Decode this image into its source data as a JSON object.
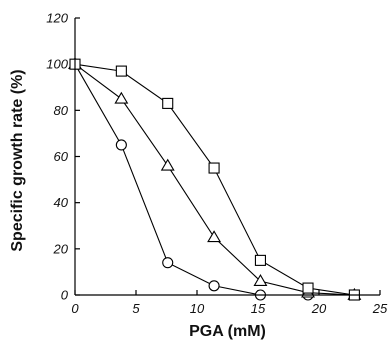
{
  "chart_data": {
    "type": "line",
    "xlabel": "PGA (mM)",
    "ylabel": "Specific growth rate (%)",
    "xlim": [
      0,
      25
    ],
    "ylim": [
      0,
      120
    ],
    "xticks": [
      0,
      5,
      10,
      15,
      20,
      25
    ],
    "yticks": [
      0,
      20,
      40,
      60,
      80,
      100,
      120
    ],
    "grid": false,
    "series": [
      {
        "marker": "circle",
        "x": [
          0,
          3.8,
          7.6,
          11.4,
          15.2,
          19.1,
          22.9
        ],
        "y": [
          100,
          65,
          14,
          4,
          0,
          0,
          0
        ]
      },
      {
        "marker": "triangle",
        "x": [
          0,
          3.8,
          7.6,
          11.4,
          15.2,
          19.1,
          22.9
        ],
        "y": [
          100,
          85,
          56,
          25,
          6,
          1,
          0
        ]
      },
      {
        "marker": "square",
        "x": [
          0,
          3.8,
          7.6,
          11.4,
          15.2,
          19.1,
          22.9
        ],
        "y": [
          100,
          97,
          83,
          55,
          15,
          3,
          0
        ]
      }
    ]
  }
}
